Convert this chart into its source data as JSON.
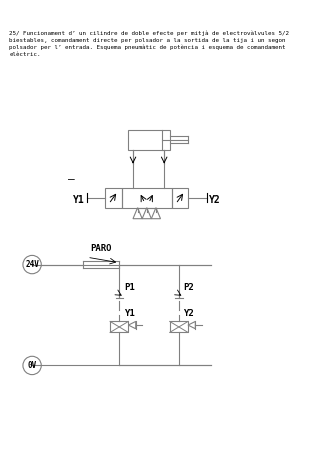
{
  "title_text": "25/ Funcionament d’ un cilindre de doble efecte per mitjà de electrovàlvules 5/2\nbiestables, comandament directe per polsador a la sortida de la tija i un segon\npolsador per l’ entrada. Esquema pneumàtic de potència i esquema de comandament\nelèctric.",
  "bg_color": "#ffffff",
  "line_color": "#808080",
  "text_color": "#000000",
  "label_Y1": "Y1",
  "label_Y2": "Y2",
  "label_PARO": "PARO",
  "label_24V": "24V",
  "label_0V": "0V",
  "label_P1": "P1",
  "label_P2": "P2",
  "label_Y1b": "Y1",
  "label_Y2b": "Y2"
}
